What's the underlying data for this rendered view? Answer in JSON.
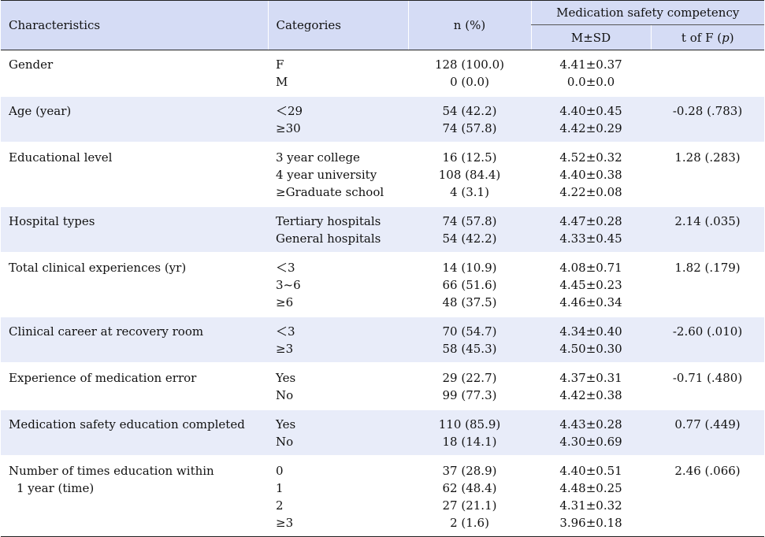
{
  "header": {
    "characteristics": "Characteristics",
    "categories": "Categories",
    "n_pct": "n (%)",
    "group_title": "Medication safety competency",
    "msd": "M±SD",
    "tf_prefix": "t of F (",
    "tf_p": "p",
    "tf_suffix": ")"
  },
  "rows": [
    {
      "characteristic": [
        "Gender"
      ],
      "categories": [
        "F",
        "M"
      ],
      "n": [
        "128 (100.0)",
        "0 (0.0)"
      ],
      "msd": [
        "4.41±0.37",
        "0.0±0.0"
      ],
      "tf": ""
    },
    {
      "characteristic": [
        "Age (year)"
      ],
      "categories": [
        "＜29",
        "≥30"
      ],
      "n": [
        "54 (42.2)",
        "74 (57.8)"
      ],
      "msd": [
        "4.40±0.45",
        "4.42±0.29"
      ],
      "tf": "-0.28 (.783)"
    },
    {
      "characteristic": [
        "Educational level"
      ],
      "categories": [
        "3 year college",
        "4 year university",
        "≥Graduate school"
      ],
      "n": [
        "16 (12.5)",
        "108 (84.4)",
        "4 (3.1)"
      ],
      "msd": [
        "4.52±0.32",
        "4.40±0.38",
        "4.22±0.08"
      ],
      "tf": "1.28 (.283)"
    },
    {
      "characteristic": [
        "Hospital types"
      ],
      "categories": [
        "Tertiary hospitals",
        "General hospitals"
      ],
      "n": [
        "74 (57.8)",
        "54 (42.2)"
      ],
      "msd": [
        "4.47±0.28",
        "4.33±0.45"
      ],
      "tf": "2.14 (.035)"
    },
    {
      "characteristic": [
        "Total clinical experiences (yr)"
      ],
      "categories": [
        "＜3",
        "3~6",
        "≥6"
      ],
      "n": [
        "14 (10.9)",
        "66 (51.6)",
        "48 (37.5)"
      ],
      "msd": [
        "4.08±0.71",
        "4.45±0.23",
        "4.46±0.34"
      ],
      "tf": "1.82 (.179)"
    },
    {
      "characteristic": [
        "Clinical career at recovery room"
      ],
      "categories": [
        "＜3",
        "≥3"
      ],
      "n": [
        "70 (54.7)",
        "58 (45.3)"
      ],
      "msd": [
        "4.34±0.40",
        "4.50±0.30"
      ],
      "tf": "-2.60 (.010)"
    },
    {
      "characteristic": [
        "Experience of medication error"
      ],
      "categories": [
        "Yes",
        "No"
      ],
      "n": [
        "29 (22.7)",
        "99 (77.3)"
      ],
      "msd": [
        "4.37±0.31",
        "4.42±0.38"
      ],
      "tf": "-0.71 (.480)"
    },
    {
      "characteristic": [
        "Medication safety education completed"
      ],
      "categories": [
        "Yes",
        "No"
      ],
      "n": [
        "110 (85.9)",
        "18 (14.1)"
      ],
      "msd": [
        "4.43±0.28",
        "4.30±0.69"
      ],
      "tf": "0.77 (.449)"
    },
    {
      "characteristic": [
        "Number of times education within",
        "1 year (time)"
      ],
      "categories": [
        "0",
        "1",
        "2",
        "≥3"
      ],
      "n": [
        "37 (28.9)",
        "62 (48.4)",
        "27 (21.1)",
        "2 (1.6)"
      ],
      "msd": [
        "4.40±0.51",
        "4.48±0.25",
        "4.31±0.32",
        "3.96±0.18"
      ],
      "tf": "2.46 (.066)"
    }
  ]
}
